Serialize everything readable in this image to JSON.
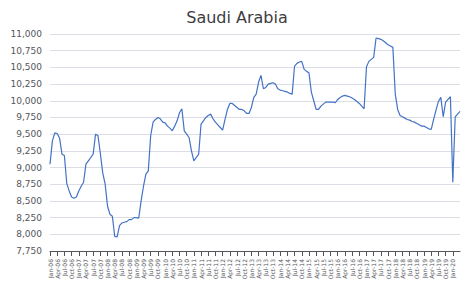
{
  "chart_data": {
    "type": "line",
    "title": "Saudi Arabia",
    "categories": [
      "Jan-06",
      null,
      null,
      "Apr-06",
      null,
      null,
      "Jul-06",
      null,
      null,
      "Oct-06",
      null,
      null,
      "Jan-07",
      null,
      null,
      "Apr-07",
      null,
      null,
      "Jul-07",
      null,
      null,
      "Oct-07",
      null,
      null,
      "Jan-08",
      null,
      null,
      "Apr-08",
      null,
      null,
      "Jul-08",
      null,
      null,
      "Oct-08",
      null,
      null,
      "Jan-09",
      null,
      null,
      "Apr-09",
      null,
      null,
      "Jul-09",
      null,
      null,
      "Oct-09",
      null,
      null,
      "Jan-10",
      null,
      null,
      "Apr-10",
      null,
      null,
      "Jul-10",
      null,
      null,
      "Oct-10",
      null,
      null,
      "Jan-11",
      null,
      null,
      "Apr-11",
      null,
      null,
      "Jul-11",
      null,
      null,
      "Oct-11",
      null,
      null,
      "Jan-12",
      null,
      null,
      "Apr-12",
      null,
      null,
      "Jul-12",
      null,
      null,
      "Oct-12",
      null,
      null,
      "Jan-13",
      null,
      null,
      "Apr-13",
      null,
      null,
      "Jul-13",
      null,
      null,
      "Oct-13",
      null,
      null,
      "Jan-14",
      null,
      null,
      "Apr-14",
      null,
      null,
      "Jul-14",
      null,
      null,
      "Oct-14",
      null,
      null,
      "Jan-15",
      null,
      null,
      "Apr-15",
      null,
      null,
      "Jul-15",
      null,
      null,
      "Oct-15",
      null,
      null,
      "Jan-16",
      null,
      null,
      "Apr-16",
      null,
      null,
      "Jul-16",
      null,
      null,
      "Oct-16",
      null,
      null,
      "Jan-17",
      null,
      null,
      "Apr-17",
      null,
      null,
      "Jul-17",
      null,
      null,
      "Oct-17",
      null,
      null,
      "Jan-18",
      null,
      null,
      "Apr-18",
      null,
      null,
      "Jul-18",
      null,
      null,
      "Oct-18",
      null,
      null,
      "Jan-19",
      null,
      null,
      "Apr-19",
      null,
      null,
      "Jul-19",
      null,
      null,
      "Oct-19",
      null,
      null,
      "Jan-20",
      null,
      null,
      null
    ],
    "values": [
      9050,
      9400,
      9520,
      9510,
      9440,
      9200,
      9180,
      8760,
      8650,
      8560,
      8540,
      8560,
      8650,
      8720,
      8780,
      9050,
      9100,
      9150,
      9200,
      9500,
      9480,
      9210,
      8920,
      8750,
      8420,
      8300,
      8270,
      7970,
      7960,
      8130,
      8170,
      8180,
      8190,
      8220,
      8220,
      8250,
      8250,
      8240,
      8500,
      8720,
      8900,
      8950,
      9480,
      9680,
      9720,
      9750,
      9730,
      9680,
      9670,
      9620,
      9590,
      9550,
      9620,
      9700,
      9820,
      9880,
      9550,
      9500,
      9450,
      9250,
      9100,
      9150,
      9200,
      9650,
      9700,
      9750,
      9780,
      9800,
      9730,
      9680,
      9640,
      9600,
      9560,
      9720,
      9870,
      9960,
      9960,
      9930,
      9900,
      9870,
      9870,
      9850,
      9810,
      9810,
      9900,
      10050,
      10100,
      10280,
      10380,
      10180,
      10200,
      10250,
      10260,
      10270,
      10250,
      10180,
      10160,
      10150,
      10140,
      10130,
      10110,
      10100,
      10520,
      10560,
      10580,
      10590,
      10470,
      10440,
      10420,
      10130,
      10000,
      9870,
      9870,
      9920,
      9950,
      9980,
      9980,
      9980,
      9980,
      9970,
      10020,
      10050,
      10070,
      10080,
      10070,
      10060,
      10040,
      10020,
      9990,
      9960,
      9920,
      9880,
      10510,
      10590,
      10620,
      10650,
      10940,
      10930,
      10920,
      10900,
      10870,
      10840,
      10820,
      10800,
      10100,
      9870,
      9780,
      9760,
      9740,
      9720,
      9710,
      9690,
      9680,
      9660,
      9640,
      9620,
      9620,
      9600,
      9580,
      9570,
      9720,
      9860,
      9990,
      10050,
      9760,
      9980,
      10020,
      10060,
      8780,
      9760,
      9800,
      9840
    ],
    "color": "#4472C4",
    "ylim": [
      7750,
      11000
    ],
    "yticks": [
      {
        "value": 7750,
        "label": "7,750"
      },
      {
        "value": 8000,
        "label": "8,000"
      },
      {
        "value": 8250,
        "label": "8,250"
      },
      {
        "value": 8500,
        "label": "8,500"
      },
      {
        "value": 8750,
        "label": "8,750"
      },
      {
        "value": 9000,
        "label": "9,000"
      },
      {
        "value": 9250,
        "label": "9,250"
      },
      {
        "value": 9500,
        "label": "9,500"
      },
      {
        "value": 9750,
        "label": "9,750"
      },
      {
        "value": 10000,
        "label": "10,000"
      },
      {
        "value": 10250,
        "label": "10,250"
      },
      {
        "value": 10500,
        "label": "10,500"
      },
      {
        "value": 10750,
        "label": "10,750"
      },
      {
        "value": 11000,
        "label": "11,000"
      }
    ],
    "grid": true
  }
}
